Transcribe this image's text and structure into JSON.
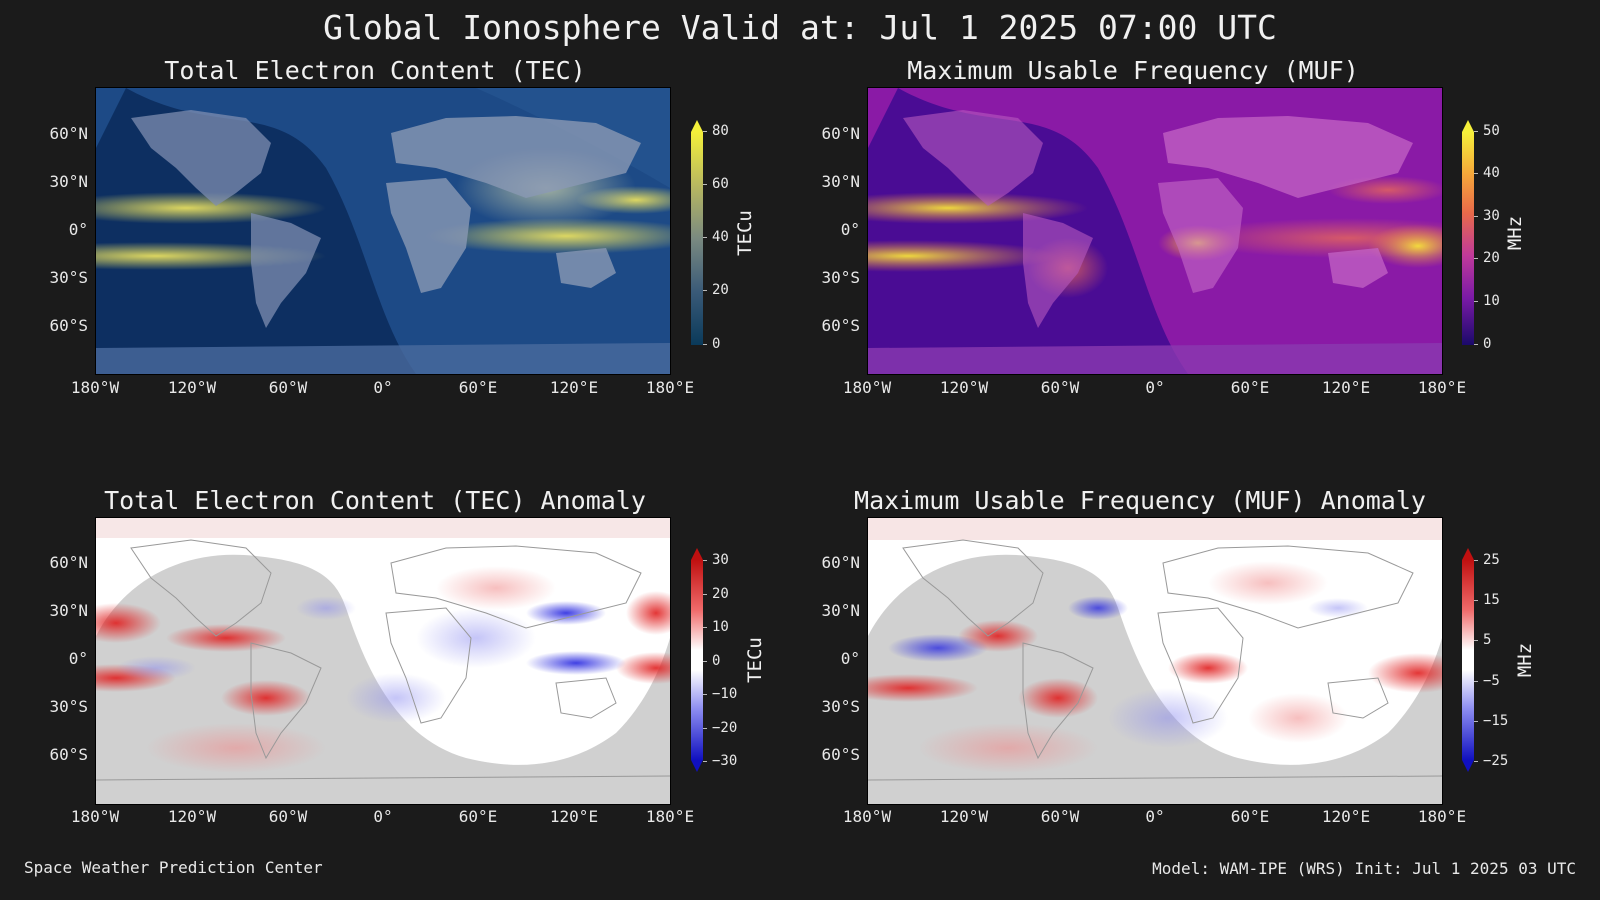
{
  "title": "Global Ionosphere Valid at: Jul 1 2025 07:00 UTC",
  "footer": {
    "left": "Space Weather Prediction Center",
    "right": "Model: WAM-IPE (WRS) Init: Jul 1 2025 03 UTC"
  },
  "lat_ticks": [
    "60°N",
    "30°N",
    "0°",
    "30°S",
    "60°S"
  ],
  "lon_ticks": [
    "180°W",
    "120°W",
    "60°W",
    "0°",
    "60°E",
    "120°E",
    "180°E"
  ],
  "panels": [
    {
      "title": "Total Electron Content (TEC)",
      "colorbar": {
        "label": "TECu",
        "ticks": [
          "80",
          "60",
          "40",
          "20",
          "0"
        ]
      },
      "colors": {
        "base": "#123a6e",
        "night": "#06204a",
        "land": "#8a98b4",
        "band": "#e6de60"
      }
    },
    {
      "title": "Maximum Usable Frequency (MUF)",
      "colorbar": {
        "label": "MHz",
        "ticks": [
          "50",
          "40",
          "30",
          "20",
          "10",
          "0"
        ]
      },
      "colors": {
        "base": "#9a1fa8",
        "night": "#3c0a8c",
        "land": "#c76ac8",
        "band": "#f3d23c"
      }
    },
    {
      "title": "Total Electron Content (TEC) Anomaly",
      "colorbar": {
        "label": "TECu",
        "ticks": [
          "30",
          "20",
          "10",
          "0",
          "−10",
          "−20",
          "−30"
        ]
      },
      "colors": {
        "base": "#ffffff",
        "night": "#c8c8c8",
        "pos": "#e02020",
        "neg": "#2a2ae0"
      }
    },
    {
      "title": "Maximum Usable Frequency (MUF) Anomaly",
      "colorbar": {
        "label": "MHz",
        "ticks": [
          "25",
          "15",
          "5",
          "−5",
          "−15",
          "−25"
        ]
      },
      "colors": {
        "base": "#ffffff",
        "night": "#c8c8c8",
        "pos": "#e02020",
        "neg": "#2a2ae0"
      }
    }
  ]
}
